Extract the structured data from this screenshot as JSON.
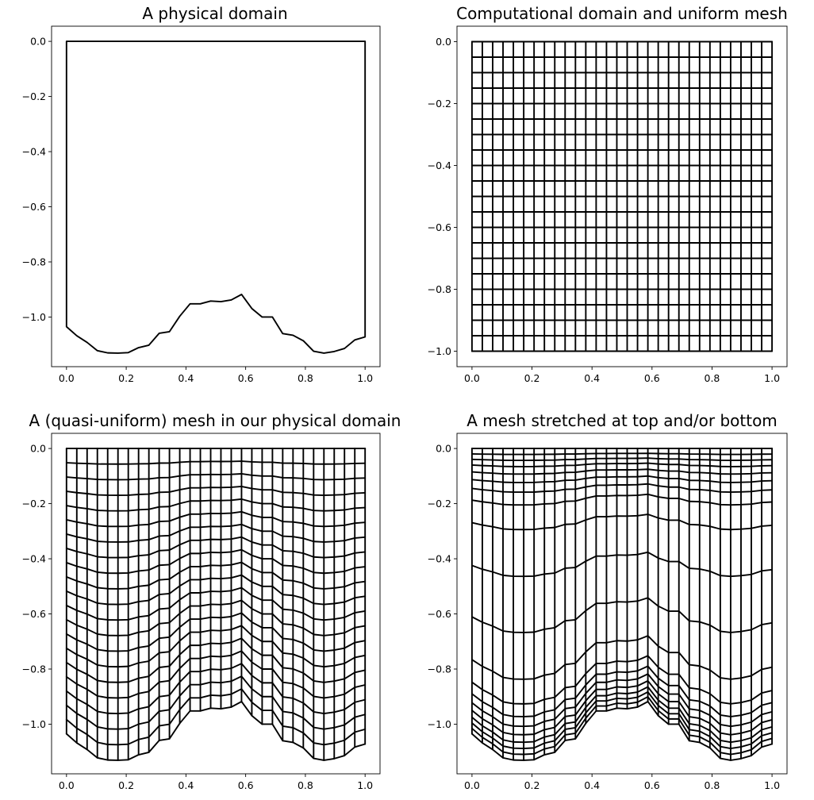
{
  "chart_data": [
    {
      "type": "line",
      "title": "A physical domain",
      "xlabel": "",
      "ylabel": "",
      "xlim": [
        -0.05,
        1.05
      ],
      "ylim": [
        -1.18,
        0.055
      ],
      "xticks": [
        0.0,
        0.2,
        0.4,
        0.6,
        0.8,
        1.0
      ],
      "xtick_labels": [
        "0.0",
        "0.2",
        "0.4",
        "0.6",
        "0.8",
        "1.0"
      ],
      "yticks": [
        0.0,
        -0.2,
        -0.4,
        -0.6,
        -0.8,
        -1.0
      ],
      "ytick_labels": [
        "0.0",
        "−0.2",
        "−0.4",
        "−0.6",
        "−0.8",
        "−1.0"
      ],
      "grid": false,
      "mesh": "outline"
    },
    {
      "type": "line",
      "title": "Computational domain and uniform mesh",
      "xlabel": "",
      "ylabel": "",
      "xlim": [
        -0.05,
        1.05
      ],
      "ylim": [
        -1.05,
        0.05
      ],
      "xticks": [
        0.0,
        0.2,
        0.4,
        0.6,
        0.8,
        1.0
      ],
      "xtick_labels": [
        "0.0",
        "0.2",
        "0.4",
        "0.6",
        "0.8",
        "1.0"
      ],
      "yticks": [
        0.0,
        -0.2,
        -0.4,
        -0.6,
        -0.8,
        -1.0
      ],
      "ytick_labels": [
        "0.0",
        "−0.2",
        "−0.4",
        "−0.6",
        "−0.8",
        "−1.0"
      ],
      "grid": false,
      "mesh": "uniform"
    },
    {
      "type": "line",
      "title": "A (quasi-uniform) mesh in our physical domain",
      "xlabel": "",
      "ylabel": "",
      "xlim": [
        -0.05,
        1.05
      ],
      "ylim": [
        -1.18,
        0.055
      ],
      "xticks": [
        0.0,
        0.2,
        0.4,
        0.6,
        0.8,
        1.0
      ],
      "xtick_labels": [
        "0.0",
        "0.2",
        "0.4",
        "0.6",
        "0.8",
        "1.0"
      ],
      "yticks": [
        0.0,
        -0.2,
        -0.4,
        -0.6,
        -0.8,
        -1.0
      ],
      "ytick_labels": [
        "0.0",
        "−0.2",
        "−0.4",
        "−0.6",
        "−0.8",
        "−1.0"
      ],
      "grid": false,
      "mesh": "quasi-uniform"
    },
    {
      "type": "line",
      "title": "A mesh stretched at top and/or bottom",
      "xlabel": "",
      "ylabel": "",
      "xlim": [
        -0.05,
        1.05
      ],
      "ylim": [
        -1.18,
        0.055
      ],
      "xticks": [
        0.0,
        0.2,
        0.4,
        0.6,
        0.8,
        1.0
      ],
      "xtick_labels": [
        "0.0",
        "0.2",
        "0.4",
        "0.6",
        "0.8",
        "1.0"
      ],
      "yticks": [
        0.0,
        -0.2,
        -0.4,
        -0.6,
        -0.8,
        -1.0
      ],
      "ytick_labels": [
        "0.0",
        "−0.2",
        "−0.4",
        "−0.6",
        "−0.8",
        "−1.0"
      ],
      "grid": false,
      "mesh": "stretched"
    }
  ],
  "bottom_boundary": {
    "x": [
      0.0,
      0.0345,
      0.069,
      0.1034,
      0.1379,
      0.1724,
      0.2069,
      0.2414,
      0.2759,
      0.3103,
      0.3448,
      0.3793,
      0.4138,
      0.4483,
      0.4828,
      0.5172,
      0.5517,
      0.5862,
      0.6207,
      0.6552,
      0.6897,
      0.7241,
      0.7586,
      0.7931,
      0.8276,
      0.8621,
      0.8966,
      0.931,
      0.9655,
      1.0
    ],
    "y": [
      -1.035,
      -1.068,
      -1.092,
      -1.122,
      -1.13,
      -1.131,
      -1.129,
      -1.111,
      -1.102,
      -1.059,
      -1.053,
      -0.997,
      -0.952,
      -0.952,
      -0.942,
      -0.944,
      -0.938,
      -0.918,
      -0.969,
      -1.0,
      -1.0,
      -1.06,
      -1.066,
      -1.086,
      -1.124,
      -1.131,
      -1.125,
      -1.114,
      -1.083,
      -1.072
    ]
  },
  "mesh_layers": {
    "uniform": [
      0.0,
      0.05,
      0.1,
      0.15,
      0.2,
      0.25,
      0.3,
      0.35,
      0.4,
      0.45,
      0.5,
      0.55,
      0.6,
      0.65,
      0.7,
      0.75,
      0.8,
      0.85,
      0.9,
      0.95,
      1.0
    ],
    "stretched": [
      0.0,
      0.019,
      0.038,
      0.058,
      0.082,
      0.109,
      0.14,
      0.181,
      0.26,
      0.41,
      0.59,
      0.74,
      0.819,
      0.86,
      0.891,
      0.918,
      0.942,
      0.962,
      0.981,
      1.0
    ]
  }
}
